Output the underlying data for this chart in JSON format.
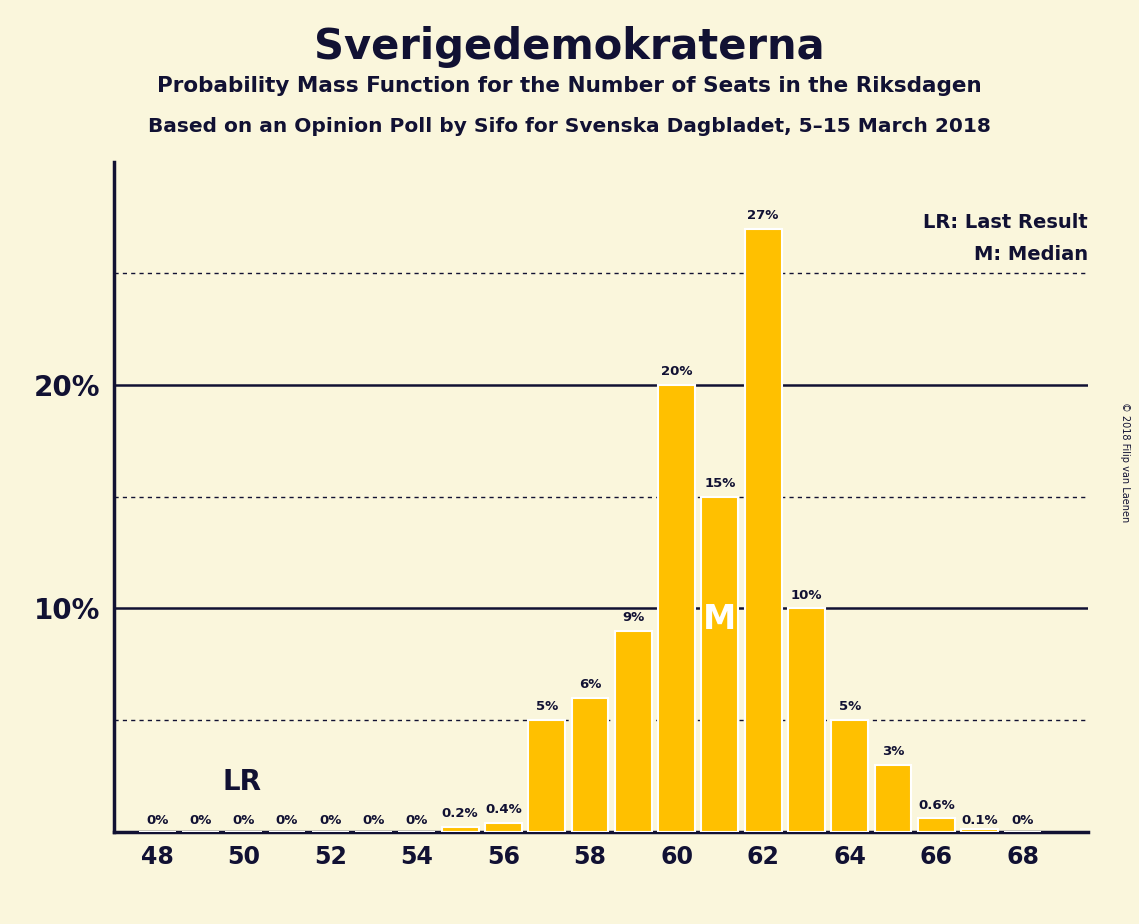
{
  "title": "Sverigedemokraterna",
  "subtitle1": "Probability Mass Function for the Number of Seats in the Riksdagen",
  "subtitle2": "Based on an Opinion Poll by Sifo for Svenska Dagbladet, 5–15 March 2018",
  "copyright": "© 2018 Filip van Laenen",
  "seats": [
    48,
    49,
    50,
    51,
    52,
    53,
    54,
    55,
    56,
    57,
    58,
    59,
    60,
    61,
    62,
    63,
    64,
    65,
    66,
    67,
    68
  ],
  "probabilities": [
    0.0,
    0.0,
    0.0,
    0.0,
    0.0,
    0.0,
    0.0,
    0.2,
    0.4,
    5.0,
    6.0,
    9.0,
    20.0,
    15.0,
    27.0,
    10.0,
    5.0,
    3.0,
    0.6,
    0.1,
    0.0
  ],
  "labels": [
    "0%",
    "0%",
    "0%",
    "0%",
    "0%",
    "0%",
    "0%",
    "0.2%",
    "0.4%",
    "5%",
    "6%",
    "9%",
    "20%",
    "15%",
    "27%",
    "10%",
    "5%",
    "3%",
    "0.6%",
    "0.1%",
    "0%"
  ],
  "bar_color": "#FFC000",
  "bar_edge_color": "#FFFFFF",
  "background_color": "#FAF6DC",
  "text_color": "#111133",
  "median_seat": 61,
  "median_label": "M",
  "lr_label": "LR",
  "lr_x": 49.5,
  "lr_y": 2.2,
  "ylim": [
    0,
    30
  ],
  "solid_gridlines": [
    10,
    20
  ],
  "dotted_gridlines": [
    5,
    15,
    25
  ],
  "xmin": 47,
  "xmax": 69.5
}
